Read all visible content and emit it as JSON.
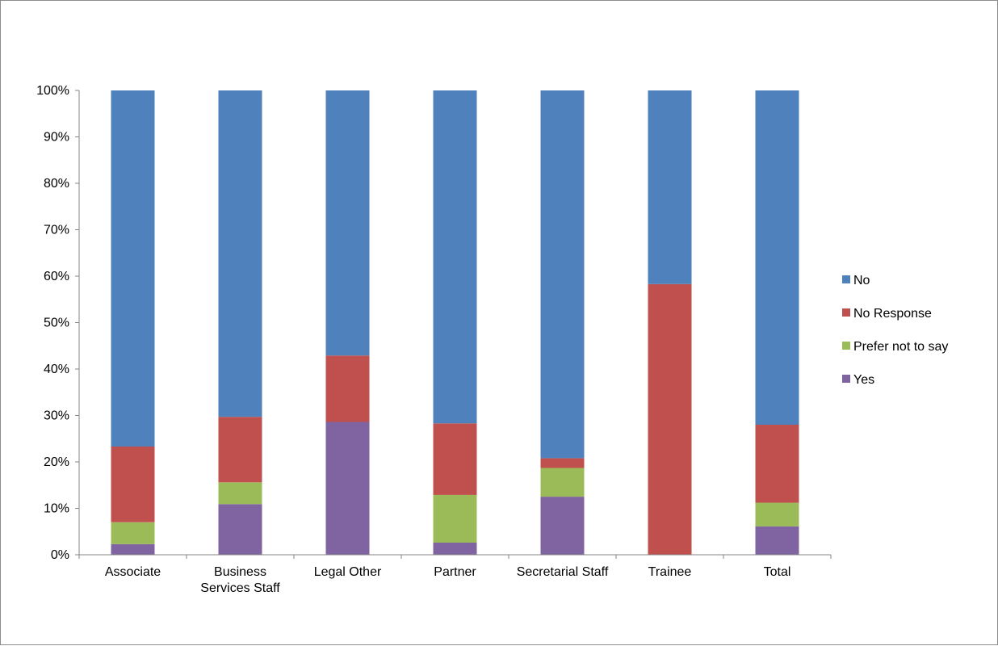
{
  "chart_data": {
    "type": "bar",
    "stacked": true,
    "title": "",
    "xlabel": "",
    "ylabel": "",
    "ylim": [
      0,
      100
    ],
    "y_unit": "%",
    "y_ticks": [
      "0%",
      "10%",
      "20%",
      "30%",
      "40%",
      "50%",
      "60%",
      "70%",
      "80%",
      "90%",
      "100%"
    ],
    "categories": [
      [
        "Associate"
      ],
      [
        "Business",
        "Services Staff"
      ],
      [
        "Legal Other"
      ],
      [
        "Partner"
      ],
      [
        "Secretarial Staff"
      ],
      [
        "Trainee"
      ],
      [
        "Total"
      ]
    ],
    "series": [
      {
        "name": "Yes",
        "color": "#8064A2",
        "values": [
          2.3,
          10.9,
          28.6,
          2.6,
          12.5,
          0.0,
          6.1
        ]
      },
      {
        "name": "Prefer not to say",
        "color": "#9BBB59",
        "values": [
          4.7,
          4.7,
          0.0,
          10.3,
          6.2,
          0.0,
          5.1
        ]
      },
      {
        "name": "No Response",
        "color": "#C0504D",
        "values": [
          16.3,
          14.1,
          14.3,
          15.4,
          2.1,
          58.3,
          16.8
        ]
      },
      {
        "name": "No",
        "color": "#4F81BD",
        "values": [
          76.7,
          70.3,
          57.1,
          71.7,
          79.2,
          41.7,
          72.0
        ]
      }
    ],
    "legend_order": [
      "No",
      "No Response",
      "Prefer not to say",
      "Yes"
    ],
    "legend_position": "right",
    "grid": false
  }
}
